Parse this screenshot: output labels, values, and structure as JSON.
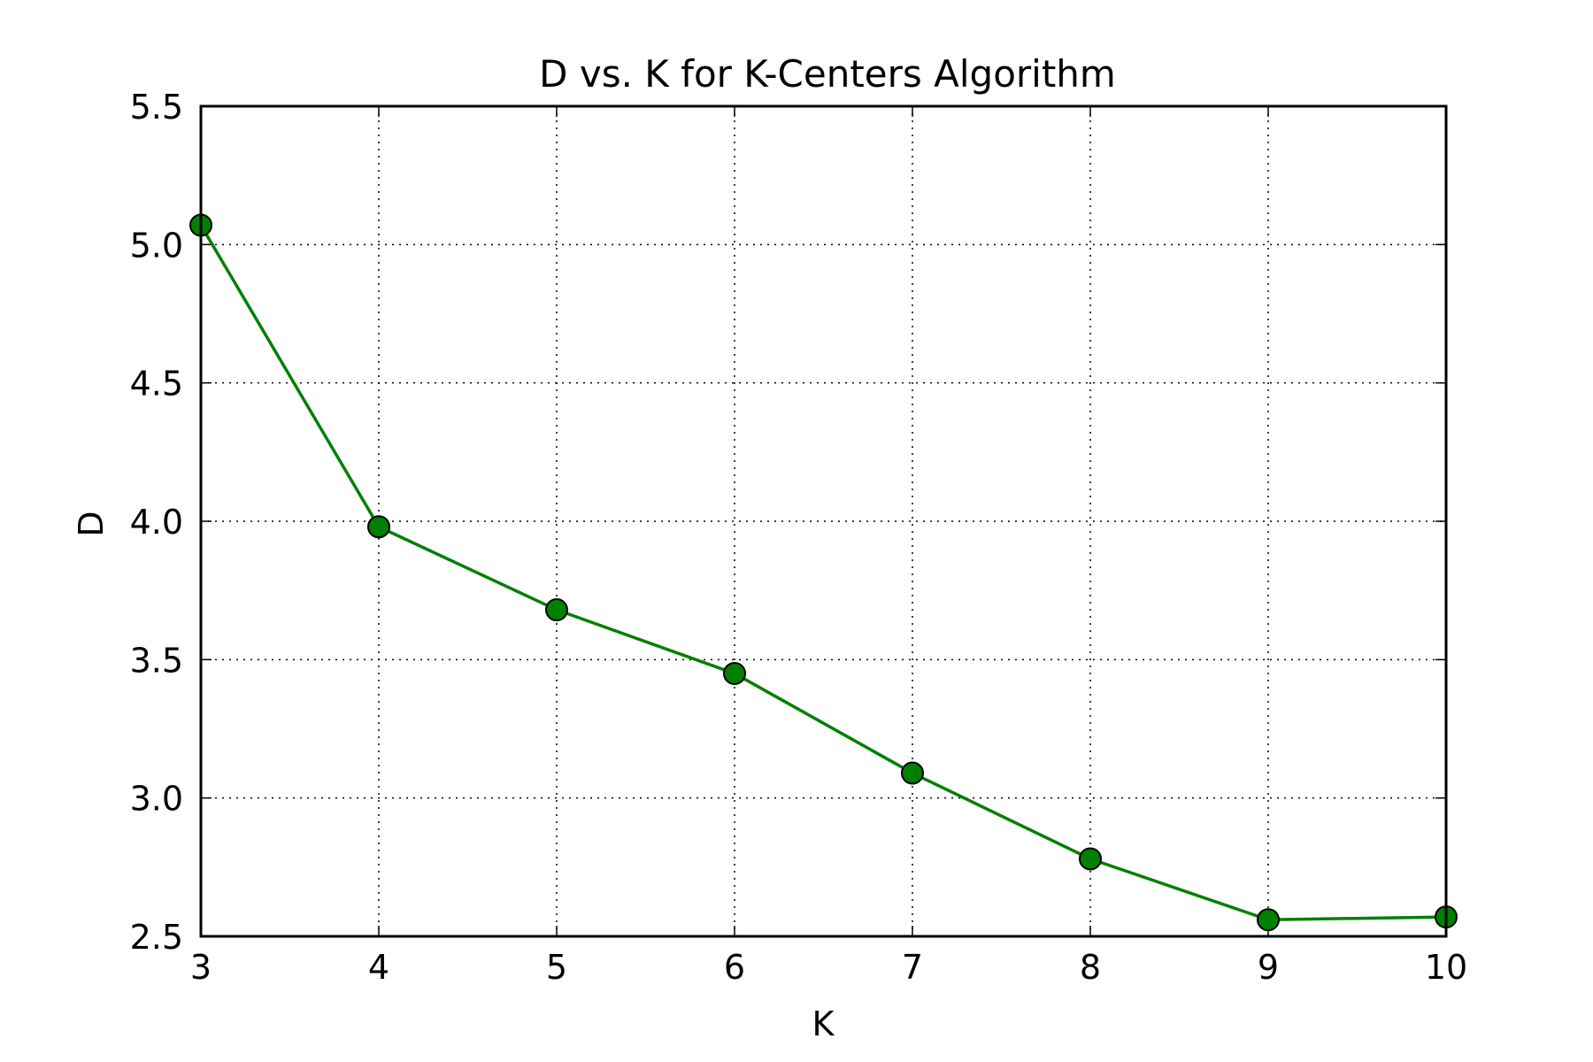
{
  "chart_data": {
    "type": "line",
    "title": "D vs. K for K-Centers Algorithm",
    "xlabel": "K",
    "ylabel": "D",
    "xlim": [
      3,
      10
    ],
    "ylim": [
      2.5,
      5.5
    ],
    "xticks": [
      "3",
      "4",
      "5",
      "6",
      "7",
      "8",
      "9",
      "10"
    ],
    "yticks": [
      "2.5",
      "3.0",
      "3.5",
      "4.0",
      "4.5",
      "5.0",
      "5.5"
    ],
    "grid": true,
    "series": [
      {
        "color": "#008000",
        "marker_color": "#008000",
        "x": [
          3,
          4,
          5,
          6,
          7,
          8,
          9,
          10
        ],
        "y": [
          5.07,
          3.98,
          3.68,
          3.45,
          3.09,
          2.78,
          2.56,
          2.57
        ]
      }
    ]
  }
}
